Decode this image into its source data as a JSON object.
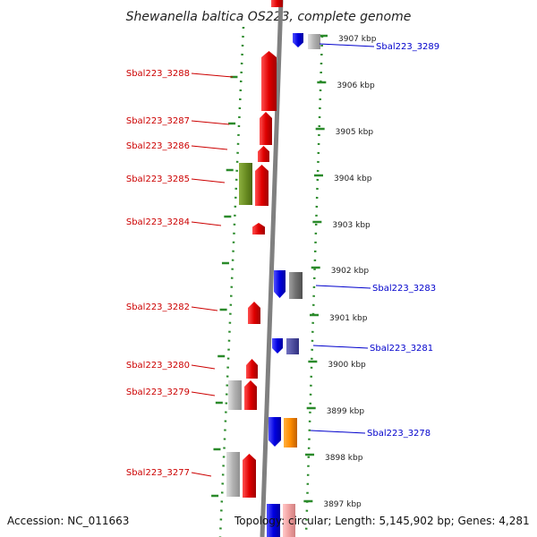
{
  "title": "Shewanella baltica OS223, complete genome",
  "accession": "Accession: NC_011663",
  "topology": "Topology: circular; Length: 5,145,902 bp; Genes: 4,281",
  "kbp_labels": [
    "3907 kbp",
    "3906 kbp",
    "3905 kbp",
    "3904 kbp",
    "3903 kbp",
    "3902 kbp",
    "3901 kbp",
    "3900 kbp",
    "3899 kbp",
    "3898 kbp",
    "3897 kbp"
  ],
  "colors": {
    "forward_gene": "#e00000",
    "reverse_gene": "#0000e0",
    "olive_gene": "#6b8e23",
    "grey_gene": "#b0b0b0",
    "dark_grey_gene": "#707070",
    "purple_gene": "#5050a0",
    "orange_gene": "#ff8c00",
    "pink_gene": "#f0a0a0",
    "backbone": "#808080",
    "ruler": "#2a8a2a",
    "left_label": "#cc0000",
    "right_label": "#0000cc"
  },
  "left_labels": [
    "Sbal223_3288",
    "Sbal223_3287",
    "Sbal223_3286",
    "Sbal223_3285",
    "Sbal223_3284",
    "Sbal223_3282",
    "Sbal223_3280",
    "Sbal223_3279",
    "Sbal223_3277"
  ],
  "right_labels": [
    "Sbal223_3289",
    "Sbal223_3283",
    "Sbal223_3281",
    "Sbal223_3278"
  ]
}
